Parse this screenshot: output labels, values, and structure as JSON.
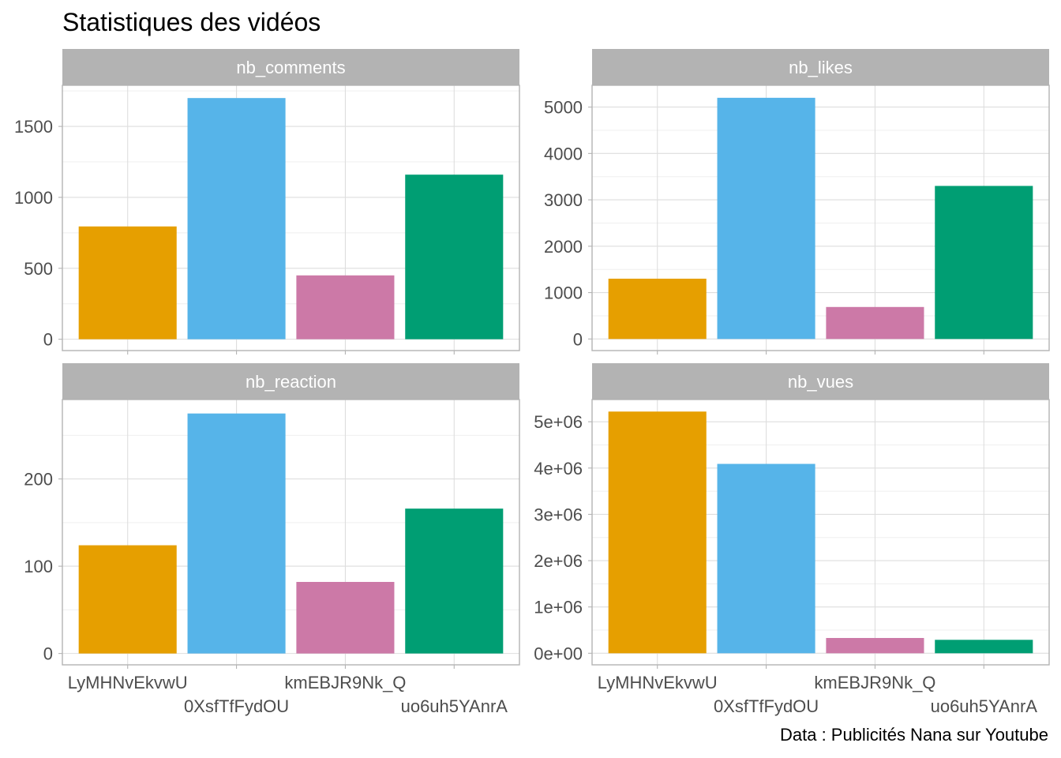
{
  "title": "Statistiques des vidéos",
  "caption": "Data : Publicités Nana sur Youtube",
  "colors": {
    "strip": "#b3b3b3",
    "grid_major": "#dedede",
    "grid_minor": "#efefef",
    "panel_border": "#b3b3b3",
    "tick_text": "#4d4d4d"
  },
  "chart_data": [
    {
      "type": "bar",
      "panel": "nb_comments",
      "categories": [
        "LyMHNvEkvwU",
        "0XsfTfFydOU",
        "kmEBJR9Nk_Q",
        "uo6uh5YAnrA"
      ],
      "values": [
        795,
        1700,
        450,
        1160
      ],
      "colors": [
        "#E69F00",
        "#56B4E9",
        "#CC79A7",
        "#009E73"
      ],
      "ylim": [
        -80,
        1790
      ],
      "yticks": [
        0,
        500,
        1000,
        1500
      ],
      "yticklabels": [
        "0",
        "500",
        "1000",
        "1500"
      ],
      "grid": true
    },
    {
      "type": "bar",
      "panel": "nb_likes",
      "categories": [
        "LyMHNvEkvwU",
        "0XsfTfFydOU",
        "kmEBJR9Nk_Q",
        "uo6uh5YAnrA"
      ],
      "values": [
        1300,
        5200,
        690,
        3300
      ],
      "colors": [
        "#E69F00",
        "#56B4E9",
        "#CC79A7",
        "#009E73"
      ],
      "ylim": [
        -250,
        5470
      ],
      "yticks": [
        0,
        1000,
        2000,
        3000,
        4000,
        5000
      ],
      "yticklabels": [
        "0",
        "1000",
        "2000",
        "3000",
        "4000",
        "5000"
      ],
      "grid": true
    },
    {
      "type": "bar",
      "panel": "nb_reaction",
      "categories": [
        "LyMHNvEkvwU",
        "0XsfTfFydOU",
        "kmEBJR9Nk_Q",
        "uo6uh5YAnrA"
      ],
      "values": [
        124,
        275,
        82,
        166
      ],
      "colors": [
        "#E69F00",
        "#56B4E9",
        "#CC79A7",
        "#009E73"
      ],
      "ylim": [
        -13,
        291
      ],
      "yticks": [
        0,
        100,
        200
      ],
      "yticklabels": [
        "0",
        "100",
        "200"
      ],
      "grid": true
    },
    {
      "type": "bar",
      "panel": "nb_vues",
      "categories": [
        "LyMHNvEkvwU",
        "0XsfTfFydOU",
        "kmEBJR9Nk_Q",
        "uo6uh5YAnrA"
      ],
      "values": [
        5220000,
        4090000,
        330000,
        290000
      ],
      "colors": [
        "#E69F00",
        "#56B4E9",
        "#CC79A7",
        "#009E73"
      ],
      "ylim": [
        -250000,
        5480000
      ],
      "yticks": [
        0,
        1000000,
        2000000,
        3000000,
        4000000,
        5000000
      ],
      "yticklabels": [
        "0e+00",
        "1e+06",
        "2e+06",
        "3e+06",
        "4e+06",
        "5e+06"
      ],
      "grid": true
    }
  ]
}
